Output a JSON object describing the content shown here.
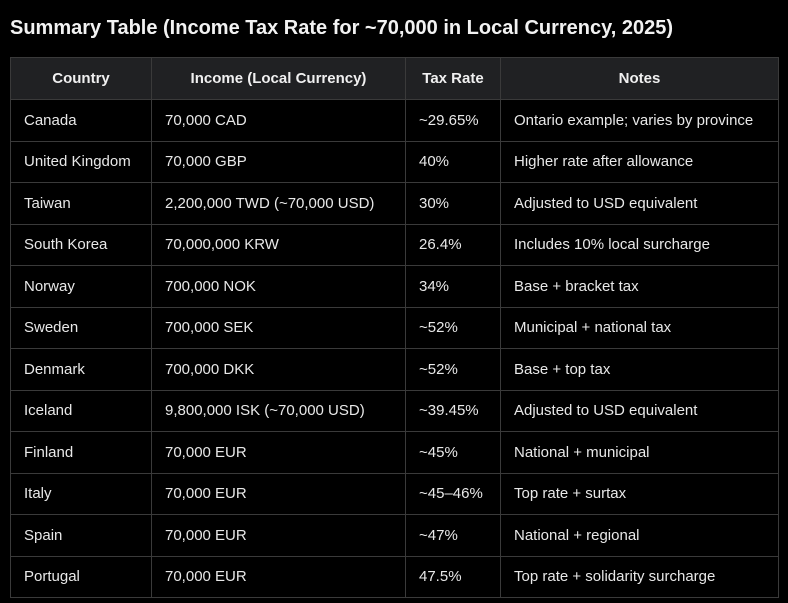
{
  "title": "Summary Table (Income Tax Rate for ~70,000 in Local Currency, 2025)",
  "table": {
    "headers": [
      "Country",
      "Income (Local Currency)",
      "Tax Rate",
      "Notes"
    ],
    "rows": [
      [
        "Canada",
        "70,000 CAD",
        "~29.65%",
        "Ontario example; varies by province"
      ],
      [
        "United Kingdom",
        "70,000 GBP",
        "40%",
        "Higher rate after allowance"
      ],
      [
        "Taiwan",
        "2,200,000 TWD (~70,000 USD)",
        "30%",
        "Adjusted to USD equivalent"
      ],
      [
        "South Korea",
        "70,000,000 KRW",
        "26.4%",
        "Includes 10% local surcharge"
      ],
      [
        "Norway",
        "700,000 NOK",
        "34%",
        "Base + bracket tax"
      ],
      [
        "Sweden",
        "700,000 SEK",
        "~52%",
        "Municipal + national tax"
      ],
      [
        "Denmark",
        "700,000 DKK",
        "~52%",
        "Base + top tax"
      ],
      [
        "Iceland",
        "9,800,000 ISK (~70,000 USD)",
        "~39.45%",
        "Adjusted to USD equivalent"
      ],
      [
        "Finland",
        "70,000 EUR",
        "~45%",
        "National + municipal"
      ],
      [
        "Italy",
        "70,000 EUR",
        "~45–46%",
        "Top rate + surtax"
      ],
      [
        "Spain",
        "70,000 EUR",
        "~47%",
        "National + regional"
      ],
      [
        "Portugal",
        "70,000 EUR",
        "47.5%",
        "Top rate + solidarity surcharge"
      ]
    ]
  }
}
